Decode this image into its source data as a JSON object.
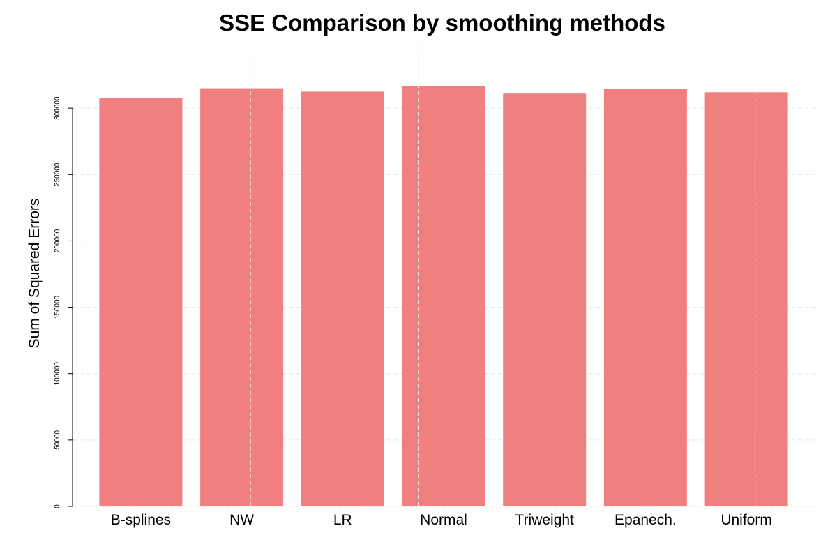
{
  "chart_data": {
    "type": "bar",
    "title": "SSE Comparison by smoothing methods",
    "xlabel": "",
    "ylabel": "Sum of Squared Errors",
    "categories": [
      "B-splines",
      "NW",
      "LR",
      "Normal",
      "Triweight",
      "Epanech.",
      "Uniform"
    ],
    "values": [
      307500,
      315000,
      312500,
      316500,
      311000,
      314500,
      312000
    ],
    "ylim": [
      0,
      350000
    ],
    "yticks": [
      0,
      50000,
      100000,
      150000,
      200000,
      250000,
      300000
    ],
    "ytick_labels": [
      "0",
      "50000",
      "100000",
      "150000",
      "200000",
      "250000",
      "300000"
    ],
    "bar_color": "#f08080",
    "grid": true
  }
}
